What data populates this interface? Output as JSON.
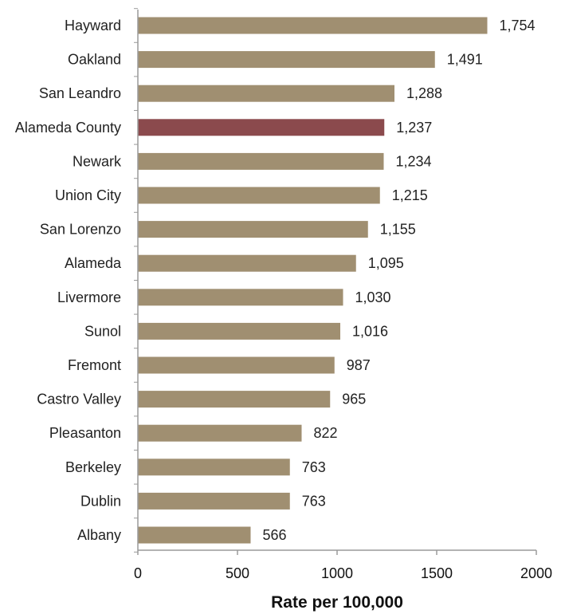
{
  "chart_data": {
    "type": "bar",
    "orientation": "horizontal",
    "categories": [
      "Hayward",
      "Oakland",
      "San Leandro",
      "Alameda County",
      "Newark",
      "Union City",
      "San Lorenzo",
      "Alameda",
      "Livermore",
      "Sunol",
      "Fremont",
      "Castro Valley",
      "Pleasanton",
      "Berkeley",
      "Dublin",
      "Albany"
    ],
    "values": [
      1754,
      1491,
      1288,
      1237,
      1234,
      1215,
      1155,
      1095,
      1030,
      1016,
      987,
      965,
      822,
      763,
      763,
      566
    ],
    "value_labels": [
      "1,754",
      "1,491",
      "1,288",
      "1,237",
      "1,234",
      "1,215",
      "1,155",
      "1,095",
      "1,030",
      "1,016",
      "987",
      "965",
      "822",
      "763",
      "763",
      "566"
    ],
    "highlight": "Alameda County",
    "colors": {
      "bar": "#a08f71",
      "highlight": "#8b4a4d",
      "axis": "#9a9a9a"
    },
    "xlim": [
      0,
      2000
    ],
    "xticks": [
      "0",
      "500",
      "1000",
      "1500",
      "2000"
    ],
    "xlabel": "Rate per 100,000",
    "title": "",
    "ylabel": "",
    "grid": false,
    "legend": "none"
  }
}
